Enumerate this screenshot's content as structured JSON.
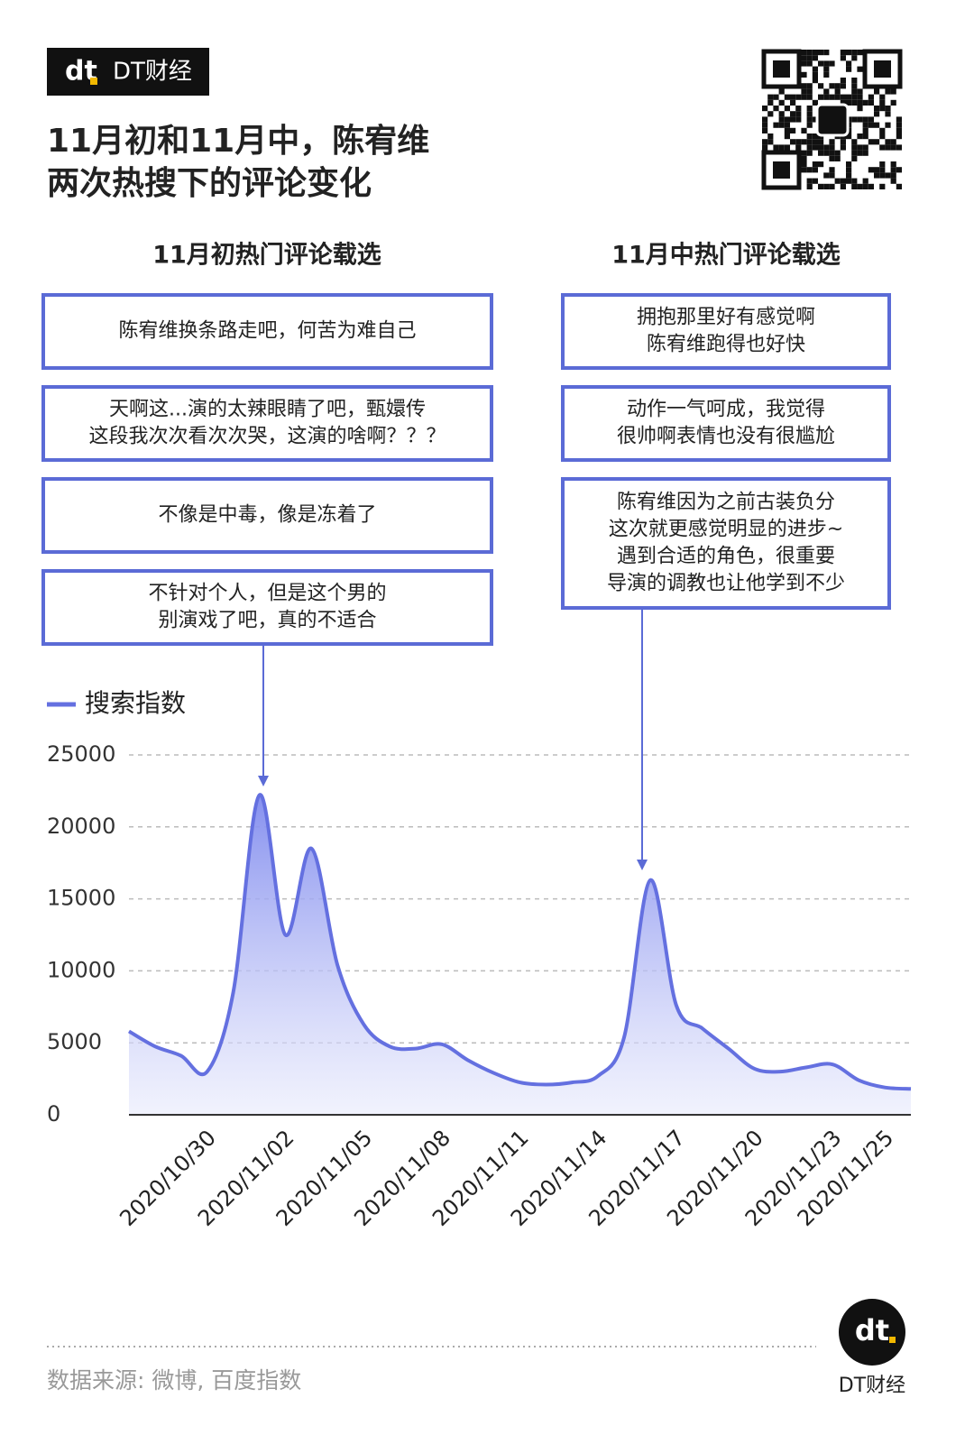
{
  "header": {
    "brand": "DT财经",
    "title": [
      "11月初和11月中，陈宥维",
      "两次热搜下的评论变化"
    ]
  },
  "comments": {
    "early": {
      "heading": "11月初热门评论载选",
      "items": [
        [
          "陈宥维换条路走吧，何苦为难自己"
        ],
        [
          "天啊这...演的太辣眼睛了吧，甄嬛传",
          "这段我次次看次次哭，这演的啥啊？？？"
        ],
        [
          "不像是中毒，像是冻着了"
        ],
        [
          "不针对个人，但是这个男的",
          "别演戏了吧，真的不适合"
        ]
      ]
    },
    "mid": {
      "heading": "11月中热门评论载选",
      "items": [
        [
          "拥抱那里好有感觉啊",
          "陈宥维跑得也好快"
        ],
        [
          "动作一气呵成，我觉得",
          "很帅啊表情也没有很尴尬"
        ],
        [
          "陈宥维因为之前古装负分",
          "这次就更感觉明显的进步~",
          "遇到合适的角色，很重要",
          "导演的调教也让他学到不少"
        ]
      ]
    }
  },
  "chart_data": {
    "type": "area",
    "categories": [
      null,
      null,
      null,
      "2020/10/30",
      null,
      null,
      "2020/11/02",
      null,
      null,
      "2020/11/05",
      null,
      null,
      "2020/11/08",
      null,
      null,
      "2020/11/11",
      null,
      null,
      "2020/11/14",
      null,
      null,
      "2020/11/17",
      null,
      null,
      "2020/11/20",
      null,
      null,
      "2020/11/23",
      null,
      "2020/11/25",
      null
    ],
    "series": [
      {
        "name": "搜索指数",
        "color": "#6470e0",
        "values": [
          5800,
          4750,
          4100,
          3000,
          8500,
          22200,
          12500,
          18500,
          10400,
          6300,
          4750,
          4600,
          4900,
          3800,
          2900,
          2250,
          2100,
          2250,
          2700,
          5400,
          16300,
          7600,
          6000,
          4600,
          3200,
          3000,
          3300,
          3500,
          2400,
          1900,
          1800
        ]
      }
    ],
    "ylim": [
      0,
      25000
    ],
    "yticks": [
      0,
      5000,
      10000,
      15000,
      20000,
      25000
    ],
    "grid": true,
    "legend": "top-left"
  },
  "footer": {
    "source": "数据来源: 微博, 百度指数",
    "brand": "DT财经"
  }
}
